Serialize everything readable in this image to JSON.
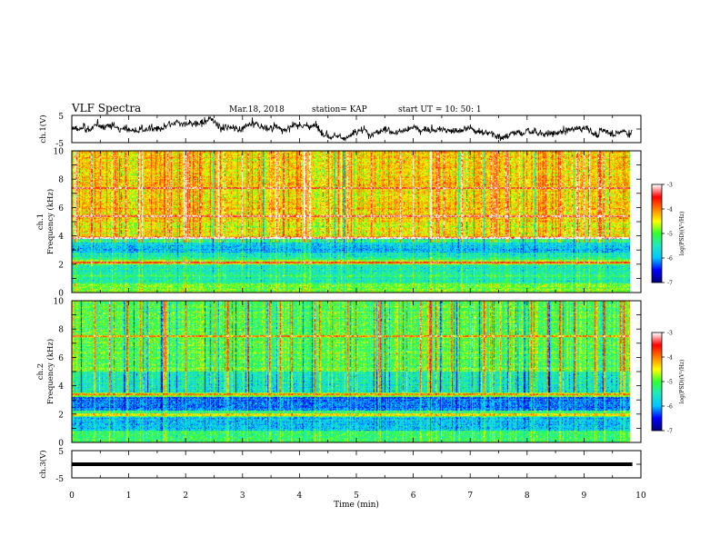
{
  "header": {
    "title": "VLF Spectra",
    "date": "Mar.18, 2018",
    "station": "station= KAP",
    "start": "start  UT  =   10: 50: 1"
  },
  "chart_data": [
    {
      "type": "line",
      "name": "waveform-ch1",
      "ylabel": "ch.1(V)",
      "ylim": [
        -5,
        5
      ],
      "yticks": [
        "5",
        "-5"
      ],
      "xlim": [
        0,
        10
      ],
      "data_extent_min": 9.85,
      "style": "noisy waveform fluctuating around 0 V (approx. -3 to +3 V)",
      "line_color": "#000000"
    },
    {
      "type": "heatmap",
      "name": "spectrogram-ch1",
      "ylabel": "ch.1\nFrequency  (kHz)",
      "ylim": [
        0,
        10
      ],
      "yticks": [
        "0",
        "2",
        "4",
        "6",
        "8",
        "10"
      ],
      "xlim": [
        0,
        10
      ],
      "data_extent_min": 9.85,
      "colorbar": {
        "label": "log(PSD)(V²/Hz)",
        "range": [
          -7,
          -3
        ],
        "ticks": [
          "-3",
          "-4",
          "-5",
          "-6",
          "-7"
        ]
      },
      "bands": [
        {
          "from": 0.0,
          "to": 0.6,
          "level": -5.0
        },
        {
          "from": 0.6,
          "to": 1.5,
          "level": -5.5
        },
        {
          "from": 1.5,
          "to": 2.0,
          "level": -5.6
        },
        {
          "from": 2.0,
          "to": 2.3,
          "level": -4.7
        },
        {
          "from": 2.3,
          "to": 2.8,
          "level": -5.6
        },
        {
          "from": 2.8,
          "to": 3.5,
          "level": -6.0
        },
        {
          "from": 3.5,
          "to": 3.75,
          "level": -5.4
        },
        {
          "from": 3.75,
          "to": 3.95,
          "level": -4.0
        },
        {
          "from": 3.95,
          "to": 5.0,
          "level": -4.6
        },
        {
          "from": 5.0,
          "to": 10.0,
          "level": -4.4
        }
      ],
      "tones_khz": [
        2.1,
        3.85,
        5.4,
        7.4
      ]
    },
    {
      "type": "heatmap",
      "name": "spectrogram-ch2",
      "ylabel": "ch.2\nFrequency  (kHz)",
      "ylim": [
        0,
        10
      ],
      "yticks": [
        "0",
        "2",
        "4",
        "6",
        "8",
        "10"
      ],
      "xlim": [
        0,
        10
      ],
      "data_extent_min": 9.85,
      "colorbar": {
        "label": "log(PSD)(V²/Hz)",
        "range": [
          -7,
          -3
        ],
        "ticks": [
          "-3",
          "-4",
          "-5",
          "-6",
          "-7"
        ]
      },
      "bands": [
        {
          "from": 0.0,
          "to": 0.8,
          "level": -5.1
        },
        {
          "from": 0.8,
          "to": 1.8,
          "level": -5.9
        },
        {
          "from": 1.8,
          "to": 2.2,
          "level": -5.3
        },
        {
          "from": 2.2,
          "to": 3.2,
          "level": -6.2
        },
        {
          "from": 3.2,
          "to": 3.5,
          "level": -5.0
        },
        {
          "from": 3.5,
          "to": 5.0,
          "level": -5.5
        },
        {
          "from": 5.0,
          "to": 10.0,
          "level": -5.0
        }
      ],
      "tones_khz": [
        1.95,
        3.4,
        7.5
      ]
    },
    {
      "type": "line",
      "name": "waveform-ch3",
      "ylabel": "ch.3(V)",
      "ylim": [
        -5,
        5
      ],
      "yticks": [
        "5",
        "-5"
      ],
      "xlim": [
        0,
        10
      ],
      "data_extent_min": 9.85,
      "style": "flat thick trace near 0 V",
      "level": 0,
      "line_color": "#000000"
    }
  ],
  "xaxis": {
    "label": "Time  (min)",
    "ticks": [
      "0",
      "1",
      "2",
      "3",
      "4",
      "5",
      "6",
      "7",
      "8",
      "9",
      "10"
    ]
  },
  "colors": {
    "colormap": [
      "#00007a",
      "#0000ff",
      "#00c8ff",
      "#20e8c0",
      "#33ff33",
      "#ffff00",
      "#ff8000",
      "#ff0000",
      "#ffffff"
    ]
  }
}
